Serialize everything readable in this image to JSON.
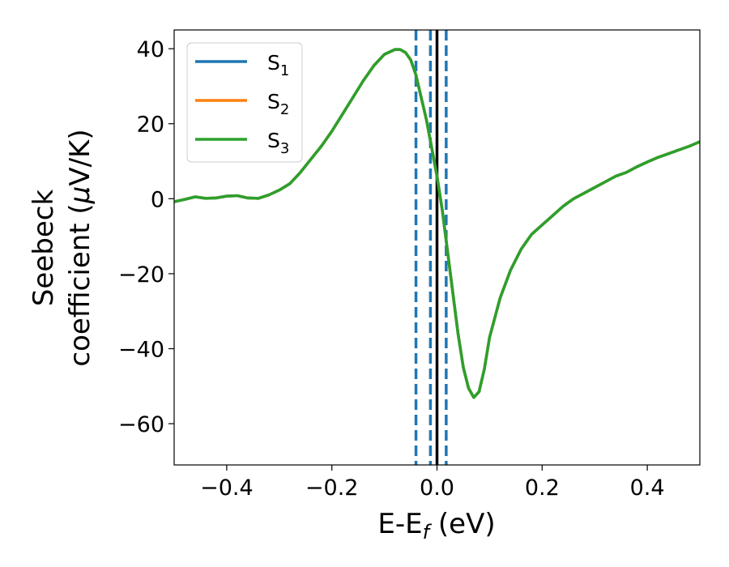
{
  "chart_data": {
    "type": "line",
    "xlabel": {
      "base": "E-E",
      "sub": "f",
      "unit": " (eV)"
    },
    "ylabel": {
      "line1": "Seebeck",
      "line2_prefix": "coefficient  (",
      "mu": "μ",
      "line2_suffix": "V/K)"
    },
    "xlim": [
      -0.5,
      0.5
    ],
    "ylim": [
      -71,
      45
    ],
    "xticks": [
      -0.4,
      -0.2,
      0.0,
      0.2,
      0.4
    ],
    "xtick_labels": [
      "−0.4",
      "−0.2",
      "0.0",
      "0.2",
      "0.4"
    ],
    "yticks": [
      40,
      20,
      0,
      -20,
      -40,
      -60
    ],
    "ytick_labels": [
      "40",
      "20",
      "0",
      "−20",
      "−40",
      "−60"
    ],
    "grid": false,
    "legend_position": "top-left",
    "series": [
      {
        "name": "S",
        "sub": "1",
        "color": "#1f77b4"
      },
      {
        "name": "S",
        "sub": "2",
        "color": "#ff7f0e"
      },
      {
        "name": "S",
        "sub": "3",
        "color": "#2ca02c"
      }
    ],
    "x": [
      -0.5,
      -0.48,
      -0.46,
      -0.44,
      -0.42,
      -0.4,
      -0.38,
      -0.36,
      -0.34,
      -0.32,
      -0.3,
      -0.28,
      -0.26,
      -0.24,
      -0.22,
      -0.2,
      -0.18,
      -0.16,
      -0.14,
      -0.12,
      -0.1,
      -0.08,
      -0.07,
      -0.06,
      -0.05,
      -0.04,
      -0.03,
      -0.02,
      -0.01,
      0.0,
      0.01,
      0.02,
      0.03,
      0.04,
      0.05,
      0.06,
      0.07,
      0.08,
      0.09,
      0.1,
      0.12,
      0.14,
      0.16,
      0.18,
      0.2,
      0.22,
      0.24,
      0.26,
      0.28,
      0.3,
      0.32,
      0.34,
      0.36,
      0.38,
      0.4,
      0.42,
      0.44,
      0.46,
      0.48,
      0.5
    ],
    "y": [
      -0.8,
      -0.2,
      0.5,
      0.1,
      0.2,
      0.7,
      0.8,
      0.2,
      0.1,
      1.0,
      2.3,
      4.0,
      7.0,
      10.5,
      14.0,
      18.0,
      22.5,
      27.0,
      31.5,
      35.5,
      38.5,
      39.8,
      39.8,
      39.0,
      37.0,
      33.0,
      27.0,
      21.0,
      13.5,
      6.0,
      -3.0,
      -14.0,
      -25.0,
      -36.0,
      -45.0,
      -50.5,
      -53.0,
      -51.5,
      -45.5,
      -37.0,
      -26.5,
      -19.0,
      -13.5,
      -9.5,
      -7.0,
      -4.5,
      -2.0,
      0.0,
      1.5,
      3.0,
      4.5,
      6.0,
      7.0,
      8.5,
      9.8,
      11.0,
      12.0,
      13.0,
      14.0,
      15.2
    ],
    "vlines": [
      {
        "x": -0.04,
        "style": "dashed",
        "color": "#1f77b4"
      },
      {
        "x": -0.0125,
        "style": "dashed",
        "color": "#1f77b4"
      },
      {
        "x": 0.0,
        "style": "solid",
        "color": "#000000"
      },
      {
        "x": 0.0175,
        "style": "dashed",
        "color": "#1f77b4"
      }
    ]
  }
}
